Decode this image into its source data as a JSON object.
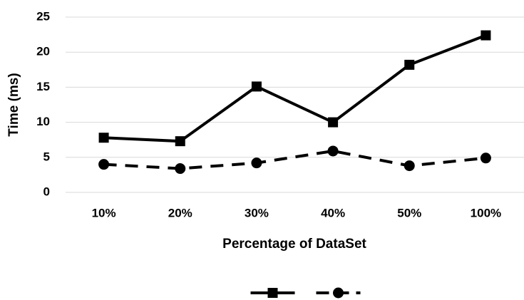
{
  "chart_data": {
    "type": "line",
    "x_label": "Percentage of DataSet",
    "y_label": "Time (ms)",
    "categories": [
      "10%",
      "20%",
      "30%",
      "40%",
      "50%",
      "100%"
    ],
    "series": [
      {
        "color": "#000000",
        "dash": "solid",
        "marker": "square",
        "values": [
          7.8,
          7.3,
          15.1,
          10.0,
          18.2,
          22.4
        ]
      },
      {
        "color": "#000000",
        "dash": "dashed",
        "marker": "circle",
        "values": [
          4.0,
          3.4,
          4.2,
          5.9,
          3.8,
          4.9
        ]
      }
    ],
    "ylim": [
      0,
      25
    ],
    "yticks": [
      0,
      5,
      10,
      15,
      20,
      25
    ],
    "grid": true,
    "legend": "bottom"
  }
}
